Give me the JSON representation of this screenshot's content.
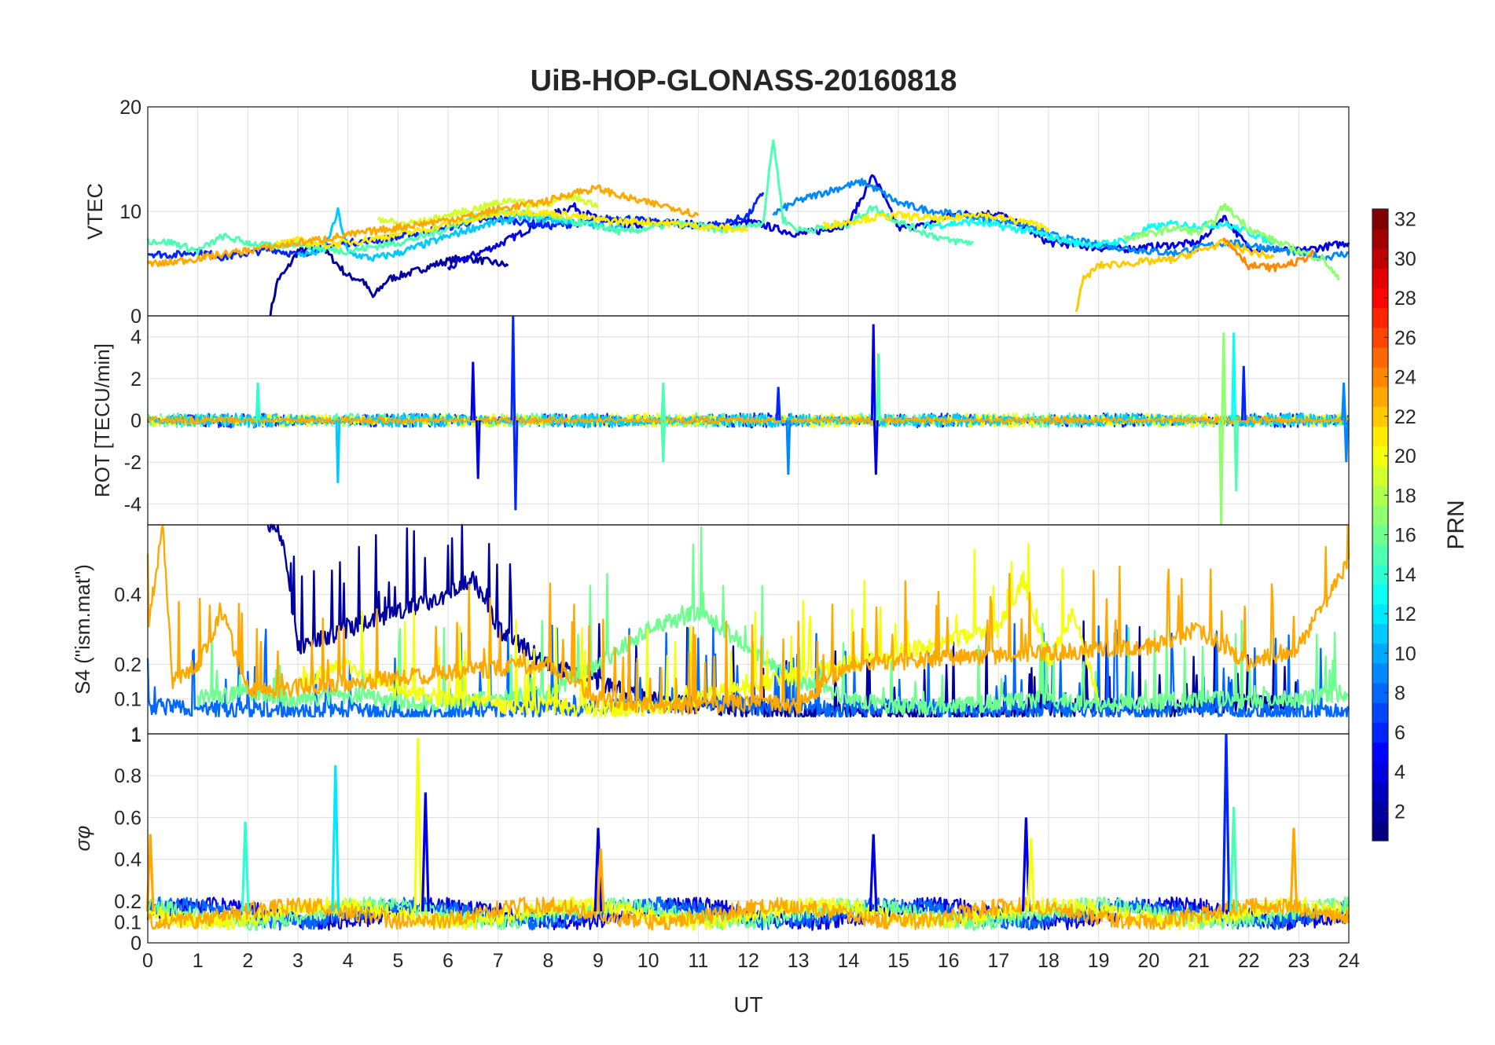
{
  "chart_data": [
    {
      "type": "line",
      "name": "vtec",
      "title": "UiB-HOP-GLONASS-20160818",
      "xlabel": "",
      "ylabel": "VTEC",
      "xlim": [
        0,
        24
      ],
      "ylim": [
        0,
        20
      ],
      "yticks": [
        0,
        10,
        20
      ],
      "grid": true,
      "series": [
        {
          "name": "PRN 2",
          "prn": 2,
          "x": [
            2.45,
            2.6,
            2.75,
            3.0,
            3.5,
            4.0,
            4.3,
            4.5,
            4.8,
            5.3,
            5.8,
            6.3,
            6.8,
            7.2
          ],
          "y": [
            0.2,
            3.5,
            4.2,
            6.2,
            6.5,
            3.8,
            3.4,
            1.8,
            3.5,
            4.2,
            5.0,
            5.6,
            5.2,
            4.8
          ]
        },
        {
          "name": "PRN 4",
          "prn": 4,
          "x": [
            6.0,
            6.5,
            7.0,
            7.5,
            8.0,
            8.5,
            9.0,
            9.6,
            10.2,
            10.8,
            11.5,
            12.0,
            12.3,
            12.5,
            13.0,
            13.5,
            14.0,
            14.5,
            15.0,
            15.5,
            16.0,
            16.5,
            17.0,
            17.5,
            18.0,
            18.5,
            19.0,
            19.5,
            20.0,
            21.0,
            21.5,
            22.0,
            23.0,
            24.0
          ],
          "y": [
            4.5,
            5.8,
            6.8,
            8.0,
            9.5,
            10.5,
            9.2,
            8.5,
            9.0,
            8.8,
            8.5,
            9.0,
            8.7,
            8.4,
            7.8,
            8.2,
            8.8,
            13.5,
            8.4,
            8.6,
            9.6,
            9.8,
            9.8,
            8.5,
            7.0,
            6.8,
            6.5,
            6.4,
            6.6,
            7.0,
            9.5,
            6.5,
            6.2,
            7.0
          ]
        },
        {
          "name": "PRN 6",
          "prn": 6,
          "x": [
            0.0,
            0.5,
            1.0,
            1.5,
            2.0,
            2.5,
            3.0,
            3.5,
            4.0,
            4.5,
            5.0,
            5.5,
            6.0,
            6.5,
            7.0,
            7.5,
            8.0,
            8.5,
            9.0,
            9.5,
            10.0,
            10.5,
            11.0,
            11.5,
            12.0,
            12.3
          ],
          "y": [
            6.0,
            5.8,
            6.2,
            5.6,
            6.0,
            6.4,
            5.8,
            6.6,
            7.0,
            7.2,
            7.5,
            8.0,
            8.5,
            9.0,
            9.3,
            9.0,
            8.6,
            8.8,
            9.2,
            9.4,
            9.0,
            8.8,
            8.6,
            8.8,
            9.6,
            11.8
          ]
        },
        {
          "name": "PRN 9",
          "prn": 9,
          "x": [
            12.5,
            13.0,
            13.5,
            14.0,
            14.3,
            14.6,
            15.0,
            15.5,
            16.0,
            16.5,
            17.0,
            17.5,
            18.0,
            18.5,
            19.0,
            19.5,
            20.0,
            20.5,
            21.0,
            21.5,
            22.0,
            22.5,
            23.0,
            23.5,
            24.0
          ],
          "y": [
            9.8,
            11.0,
            11.8,
            12.5,
            12.8,
            12.0,
            10.8,
            10.2,
            9.8,
            9.5,
            9.2,
            8.8,
            7.8,
            7.2,
            6.8,
            6.5,
            6.2,
            6.0,
            6.5,
            7.0,
            6.8,
            6.4,
            6.0,
            5.6,
            6.0
          ]
        },
        {
          "name": "PRN 11",
          "prn": 11,
          "x": [
            3.0,
            3.5,
            3.7,
            3.8,
            4.0,
            4.5,
            5.0,
            5.5,
            6.0,
            6.5,
            7.0,
            7.5,
            8.0,
            8.5,
            9.0,
            9.5
          ],
          "y": [
            5.8,
            6.2,
            8.5,
            10.0,
            6.0,
            5.5,
            6.0,
            6.8,
            7.6,
            8.4,
            9.0,
            9.5,
            9.2,
            9.0,
            8.6,
            8.4
          ]
        },
        {
          "name": "PRN 13",
          "prn": 13,
          "x": [
            15.5,
            16.0,
            16.5,
            17.0,
            17.5,
            18.0,
            18.5,
            19.0,
            19.5,
            20.0,
            20.5,
            21.0,
            21.5,
            22.0,
            22.5
          ],
          "y": [
            8.6,
            8.8,
            9.0,
            8.6,
            8.2,
            7.6,
            7.0,
            6.8,
            7.2,
            8.4,
            8.8,
            8.6,
            8.8,
            8.0,
            7.0
          ]
        },
        {
          "name": "PRN 15",
          "prn": 15,
          "x": [
            0.0,
            0.5,
            1.0,
            1.5,
            2.0,
            2.5,
            3.0,
            3.5,
            4.0,
            4.5,
            5.0,
            5.5,
            6.0,
            6.5,
            7.0,
            7.5,
            8.0,
            8.5,
            9.0,
            9.5,
            10.0,
            10.5,
            11.0,
            11.5,
            12.0,
            12.3,
            12.5,
            12.7,
            13.0,
            13.5,
            14.0,
            14.5,
            15.0,
            15.5,
            16.0,
            16.5
          ],
          "y": [
            7.2,
            7.0,
            6.2,
            7.6,
            7.0,
            6.6,
            7.0,
            6.4,
            6.2,
            6.6,
            7.0,
            7.6,
            8.4,
            9.4,
            10.0,
            9.8,
            9.4,
            9.0,
            8.6,
            8.0,
            8.4,
            8.8,
            8.6,
            8.2,
            8.6,
            9.0,
            17.0,
            9.2,
            8.2,
            8.4,
            8.8,
            10.4,
            9.0,
            8.0,
            7.2,
            7.0
          ]
        },
        {
          "name": "PRN 17",
          "prn": 17,
          "x": [
            19.5,
            20.0,
            20.5,
            21.0,
            21.3,
            21.5,
            22.0,
            22.5,
            23.0,
            23.5,
            23.8
          ],
          "y": [
            7.4,
            7.8,
            8.4,
            8.0,
            9.0,
            10.6,
            8.4,
            7.2,
            6.2,
            5.4,
            3.4
          ]
        },
        {
          "name": "PRN 19",
          "prn": 19,
          "x": [
            4.6,
            5.0,
            5.5,
            6.0,
            6.5,
            7.0,
            7.3,
            7.6,
            8.0,
            8.5,
            9.0
          ],
          "y": [
            9.4,
            8.8,
            9.0,
            9.6,
            10.2,
            10.8,
            11.2,
            10.6,
            10.8,
            11.4,
            10.6
          ]
        },
        {
          "name": "PRN 21",
          "prn": 21,
          "x": [
            2.5,
            3.0,
            3.5,
            4.0,
            4.5,
            5.0,
            5.5,
            6.0,
            6.5,
            7.0,
            7.5,
            8.0,
            8.5,
            9.0,
            9.5,
            10.0,
            10.5,
            11.0,
            11.5,
            12.0
          ],
          "y": [
            6.8,
            7.2,
            6.8,
            7.0,
            7.4,
            7.8,
            8.2,
            8.8,
            9.2,
            9.8,
            10.0,
            9.8,
            9.6,
            9.2,
            9.0,
            9.0,
            8.8,
            8.6,
            8.4,
            8.2
          ]
        },
        {
          "name": "PRN 21b",
          "prn": 21,
          "x": [
            13.5,
            14.0,
            14.5,
            15.0,
            15.5,
            16.0,
            16.5,
            17.0,
            17.5,
            18.0
          ],
          "y": [
            8.6,
            9.0,
            9.4,
            9.6,
            9.4,
            9.2,
            9.8,
            9.4,
            9.0,
            8.4
          ]
        },
        {
          "name": "PRN 22",
          "prn": 22,
          "x": [
            18.55,
            18.7,
            19.0,
            19.5,
            20.0,
            20.5,
            21.0,
            21.5,
            22.0,
            22.5
          ],
          "y": [
            0.5,
            3.5,
            4.8,
            5.0,
            5.2,
            5.4,
            6.2,
            7.0,
            6.2,
            5.6
          ]
        },
        {
          "name": "PRN 23",
          "prn": 23,
          "x": [
            0.0,
            0.3,
            6.0,
            6.5,
            7.0,
            7.5,
            8.0,
            8.5,
            9.0,
            9.5,
            10.0,
            10.5,
            11.0
          ],
          "y": [
            5.0,
            5.0,
            9.2,
            9.6,
            10.2,
            10.6,
            11.0,
            11.8,
            12.2,
            11.4,
            10.8,
            10.4,
            9.6
          ]
        },
        {
          "name": "PRN 24",
          "prn": 24,
          "x": [
            21.5,
            21.8,
            22.0,
            22.5,
            23.0,
            23.3
          ],
          "y": [
            7.4,
            6.0,
            4.8,
            4.6,
            5.2,
            6.0
          ]
        }
      ]
    },
    {
      "type": "line",
      "name": "rot",
      "ylabel": "ROT [TECU/min]",
      "xlim": [
        0,
        24
      ],
      "ylim": [
        -5,
        5
      ],
      "yticks": [
        -4,
        -2,
        0,
        2,
        4
      ],
      "grid": true,
      "spikes": [
        {
          "x": 2.2,
          "y": 1.8,
          "prn": 14
        },
        {
          "x": 6.5,
          "y": 2.8,
          "prn": 4
        },
        {
          "x": 6.6,
          "y": -2.8,
          "prn": 4
        },
        {
          "x": 7.3,
          "y": 5.0,
          "prn": 6
        },
        {
          "x": 7.35,
          "y": -4.3,
          "prn": 6
        },
        {
          "x": 3.8,
          "y": -3.0,
          "prn": 11
        },
        {
          "x": 10.3,
          "y": 1.8,
          "prn": 15
        },
        {
          "x": 10.3,
          "y": -2.0,
          "prn": 15
        },
        {
          "x": 12.6,
          "y": 1.6,
          "prn": 6
        },
        {
          "x": 12.8,
          "y": -2.6,
          "prn": 9
        },
        {
          "x": 14.5,
          "y": 4.6,
          "prn": 4
        },
        {
          "x": 14.55,
          "y": -2.6,
          "prn": 4
        },
        {
          "x": 14.6,
          "y": 3.2,
          "prn": 15
        },
        {
          "x": 21.5,
          "y": 4.2,
          "prn": 17
        },
        {
          "x": 21.45,
          "y": -5.0,
          "prn": 17
        },
        {
          "x": 21.7,
          "y": 4.2,
          "prn": 13
        },
        {
          "x": 21.9,
          "y": 2.6,
          "prn": 6
        },
        {
          "x": 21.75,
          "y": -3.4,
          "prn": 15
        },
        {
          "x": 23.9,
          "y": 1.8,
          "prn": 9
        },
        {
          "x": 23.95,
          "y": -2.0,
          "prn": 9
        }
      ]
    },
    {
      "type": "line",
      "name": "s4",
      "ylabel": "S4 (\"ism.mat\")",
      "xlim": [
        0,
        24
      ],
      "ylim": [
        0,
        0.6
      ],
      "yticks": [
        0.1,
        0.2,
        0.4
      ],
      "yticklabels": [
        "0.1",
        "0.2",
        "0.4"
      ],
      "corner_label": "1",
      "grid": true,
      "series": [
        {
          "name": "PRN 2",
          "prn": 2,
          "x": [
            2.4,
            2.5,
            2.7,
            3.0,
            4.0,
            5.0,
            6.0,
            6.5,
            7.0,
            8.0,
            9.0,
            10.0,
            11.0,
            12.0,
            13.0,
            14.0,
            15.0,
            16.0,
            17.0,
            18.0,
            19.0,
            20.0,
            21.0,
            22.0,
            23.0
          ],
          "y": [
            0.6,
            0.6,
            0.55,
            0.25,
            0.3,
            0.35,
            0.4,
            0.45,
            0.3,
            0.2,
            0.15,
            0.1,
            0.08,
            0.07,
            0.06,
            0.06,
            0.06,
            0.06,
            0.06,
            0.07,
            0.08,
            0.07,
            0.08,
            0.09,
            0.08
          ]
        },
        {
          "name": "PRN 8",
          "prn": 8,
          "x": [
            0.0,
            1.0,
            2.0,
            3.0,
            4.0,
            5.0,
            6.0,
            7.0,
            8.0,
            9.0,
            10.0,
            11.0,
            12.0,
            13.0,
            14.0,
            15.0,
            16.0,
            17.0,
            18.0,
            19.0,
            20.0,
            21.0,
            22.0,
            23.0,
            24.0
          ],
          "y": [
            0.08,
            0.07,
            0.07,
            0.06,
            0.07,
            0.06,
            0.06,
            0.07,
            0.07,
            0.08,
            0.08,
            0.09,
            0.08,
            0.07,
            0.07,
            0.08,
            0.07,
            0.07,
            0.07,
            0.07,
            0.06,
            0.07,
            0.06,
            0.06,
            0.07
          ]
        },
        {
          "name": "PRN 16",
          "prn": 16,
          "x": [
            1.0,
            2.0,
            3.0,
            4.0,
            5.0,
            6.0,
            7.0,
            8.0,
            9.0,
            10.0,
            11.0,
            12.0,
            13.0,
            14.0,
            15.0,
            16.0,
            17.0,
            18.0,
            19.0,
            20.0,
            21.0,
            22.0,
            23.0,
            24.0
          ],
          "y": [
            0.1,
            0.12,
            0.1,
            0.11,
            0.09,
            0.09,
            0.1,
            0.12,
            0.2,
            0.3,
            0.35,
            0.25,
            0.15,
            0.1,
            0.08,
            0.08,
            0.09,
            0.1,
            0.08,
            0.09,
            0.1,
            0.1,
            0.1,
            0.12
          ]
        },
        {
          "name": "PRN 20",
          "prn": 20,
          "x": [
            3.0,
            4.0,
            5.0,
            6.0,
            7.0,
            8.0,
            9.0,
            10.0,
            17.0,
            17.5,
            18.0,
            18.5,
            19.0
          ],
          "y": [
            0.15,
            0.2,
            0.12,
            0.1,
            0.08,
            0.08,
            0.07,
            0.07,
            0.3,
            0.45,
            0.2,
            0.35,
            0.1
          ]
        },
        {
          "name": "PRN 23",
          "prn": 23,
          "x": [
            0.0,
            0.3,
            0.5,
            1.0,
            1.5,
            2.0,
            8.0,
            9.0,
            10.0,
            11.0,
            12.0,
            13.0,
            14.0,
            20.0,
            21.0,
            22.0,
            23.0,
            24.0
          ],
          "y": [
            0.3,
            0.6,
            0.15,
            0.2,
            0.35,
            0.12,
            0.2,
            0.1,
            0.08,
            0.08,
            0.09,
            0.08,
            0.2,
            0.25,
            0.3,
            0.2,
            0.25,
            0.5
          ]
        }
      ]
    },
    {
      "type": "line",
      "name": "sigma_phi",
      "ylabel": "σφ",
      "xlabel": "UT",
      "xlim": [
        0,
        24
      ],
      "ylim": [
        0,
        1
      ],
      "yticks": [
        0,
        0.1,
        0.2,
        0.4,
        0.6,
        0.8,
        1
      ],
      "yticklabels": [
        "0",
        "0.1",
        "0.2",
        "0.4",
        "0.6",
        "0.8",
        "1"
      ],
      "xticks": [
        0,
        1,
        2,
        3,
        4,
        5,
        6,
        7,
        8,
        9,
        10,
        11,
        12,
        13,
        14,
        15,
        16,
        17,
        18,
        19,
        20,
        21,
        22,
        23,
        24
      ],
      "grid": true,
      "spikes": [
        {
          "x": 0.05,
          "y": 0.52,
          "prn": 23
        },
        {
          "x": 1.95,
          "y": 0.58,
          "prn": 14
        },
        {
          "x": 3.75,
          "y": 0.85,
          "prn": 12
        },
        {
          "x": 5.4,
          "y": 0.98,
          "prn": 20
        },
        {
          "x": 5.55,
          "y": 0.72,
          "prn": 4
        },
        {
          "x": 9.0,
          "y": 0.55,
          "prn": 4
        },
        {
          "x": 9.05,
          "y": 0.45,
          "prn": 23
        },
        {
          "x": 14.5,
          "y": 0.52,
          "prn": 4
        },
        {
          "x": 17.55,
          "y": 0.6,
          "prn": 4
        },
        {
          "x": 17.65,
          "y": 0.5,
          "prn": 20
        },
        {
          "x": 21.55,
          "y": 1.0,
          "prn": 6
        },
        {
          "x": 21.7,
          "y": 0.65,
          "prn": 15
        },
        {
          "x": 22.9,
          "y": 0.55,
          "prn": 23
        }
      ]
    }
  ],
  "colorbar": {
    "label": "PRN",
    "min": 1,
    "max": 32,
    "ticks": [
      2,
      4,
      6,
      8,
      10,
      12,
      14,
      16,
      18,
      20,
      22,
      24,
      26,
      28,
      30,
      32
    ],
    "colormap": "jet"
  }
}
